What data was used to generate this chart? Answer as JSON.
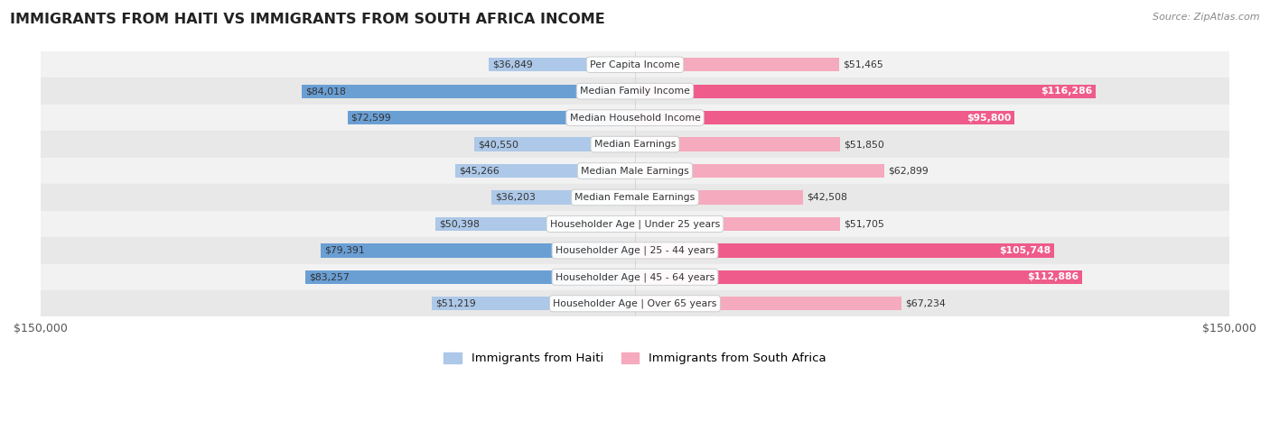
{
  "title": "IMMIGRANTS FROM HAITI VS IMMIGRANTS FROM SOUTH AFRICA INCOME",
  "source": "Source: ZipAtlas.com",
  "categories": [
    "Per Capita Income",
    "Median Family Income",
    "Median Household Income",
    "Median Earnings",
    "Median Male Earnings",
    "Median Female Earnings",
    "Householder Age | Under 25 years",
    "Householder Age | 25 - 44 years",
    "Householder Age | 45 - 64 years",
    "Householder Age | Over 65 years"
  ],
  "haiti_values": [
    36849,
    84018,
    72599,
    40550,
    45266,
    36203,
    50398,
    79391,
    83257,
    51219
  ],
  "sa_values": [
    51465,
    116286,
    95800,
    51850,
    62899,
    42508,
    51705,
    105748,
    112886,
    67234
  ],
  "haiti_color_light": "#ADC8E8",
  "haiti_color_dark": "#6A9FD4",
  "sa_color_light": "#F5AABE",
  "sa_color_dark": "#EF5B8A",
  "haiti_threshold": 60000,
  "sa_threshold": 80000,
  "max_value": 150000,
  "legend_haiti": "Immigrants from Haiti",
  "legend_sa": "Immigrants from South Africa",
  "bar_height": 0.52,
  "row_bg_odd": "#F2F2F2",
  "row_bg_even": "#E8E8E8"
}
